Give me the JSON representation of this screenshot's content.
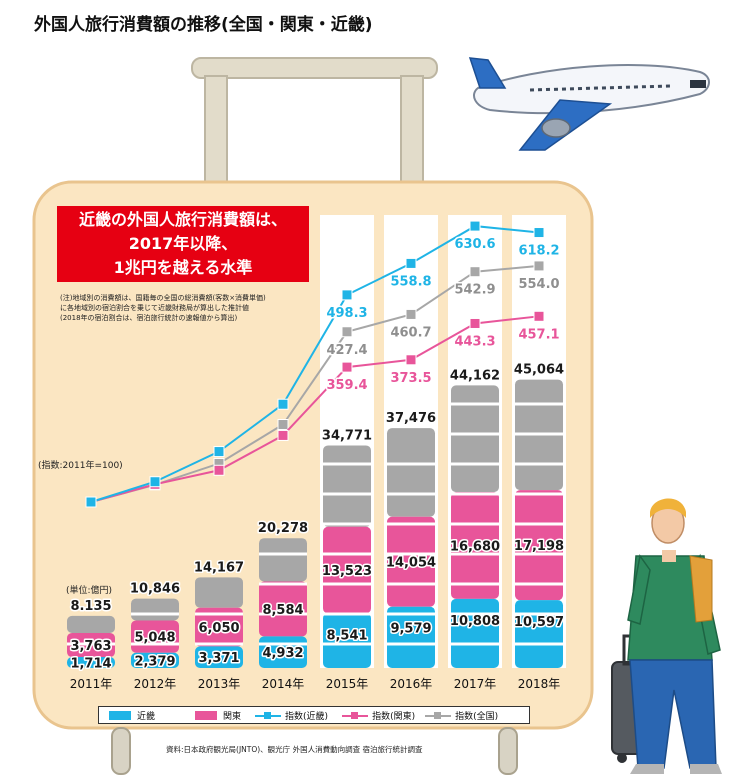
{
  "title": "外国人旅行消費額の推移(全国・関東・近畿)",
  "headline": {
    "line1": "近畿の外国人旅行消費額は、",
    "line2": "2017年以降、",
    "line3": "1兆円を越える水準"
  },
  "note": {
    "line1": "(注)地域別の消費額は、国籍毎の全国の総消費額(客数×消費単価)",
    "line2": "に各地域別の宿泊割合を乗じて近畿財務局が算出した推計値",
    "line3": "(2018年の宿泊割合は、宿泊旅行統計の速報値から算出)"
  },
  "index_base_label": "(指数:2011年=100)",
  "unit_label": "(単位:億円)",
  "legend": {
    "kinki": "近畿",
    "kanto": "関東",
    "idx_kinki": "指数(近畿)",
    "idx_kanto": "指数(関東)",
    "idx_national": "指数(全国)"
  },
  "source": "資料:日本政府観光局(JNTO)、観光庁 外国人消費動向調査 宿泊旅行統計調査",
  "colors": {
    "kinki": "#1fb4e6",
    "kanto": "#e8559a",
    "national": "#a7a7a7",
    "headline_bg": "#e60012",
    "suitcase": "#fbe6c2",
    "suitcase_edge": "#e9c48e",
    "handle": "#e2dcca"
  },
  "chart_data": {
    "type": "bar",
    "stacked": true,
    "categories": [
      "2011年",
      "2012年",
      "2013年",
      "2014年",
      "2015年",
      "2016年",
      "2017年",
      "2018年"
    ],
    "series": [
      {
        "name": "近畿",
        "values": [
          1714,
          2379,
          3371,
          4932,
          8541,
          9579,
          10808,
          10597
        ]
      },
      {
        "name": "関東",
        "values": [
          3763,
          5048,
          6050,
          8584,
          13523,
          14054,
          16680,
          17198
        ]
      }
    ],
    "national_total": [
      8135,
      10846,
      14167,
      20278,
      34771,
      37476,
      44162,
      45064
    ],
    "value_labels": {
      "kinki": [
        "1,714",
        "2,379",
        "3,371",
        "4,932",
        "8,541",
        "9,579",
        "10,808",
        "10,597"
      ],
      "kanto": [
        "3,763",
        "5,048",
        "6,050",
        "8,584",
        "13,523",
        "14,054",
        "16,680",
        "17,198"
      ],
      "national": [
        "8.135",
        "10,846",
        "14,167",
        "20,278",
        "34,771",
        "37,476",
        "44,162",
        "45,064"
      ]
    },
    "index_lines": {
      "base_year": "2011年",
      "kinki": [
        100,
        139,
        197,
        288,
        498.3,
        558.8,
        630.6,
        618.2
      ],
      "kanto": [
        100,
        134,
        161,
        228,
        359.4,
        373.5,
        443.3,
        457.1
      ],
      "national": [
        100,
        133,
        174,
        249,
        427.4,
        460.7,
        542.9,
        554.0
      ],
      "labels": {
        "kinki": [
          "",
          "",
          "",
          "",
          "498.3",
          "558.8",
          "630.6",
          "618.2"
        ],
        "kanto": [
          "",
          "",
          "",
          "",
          "359.4",
          "373.5",
          "443.3",
          "457.1"
        ],
        "national": [
          "",
          "",
          "",
          "",
          "427.4",
          "460.7",
          "542.9",
          "554.0"
        ]
      }
    }
  }
}
